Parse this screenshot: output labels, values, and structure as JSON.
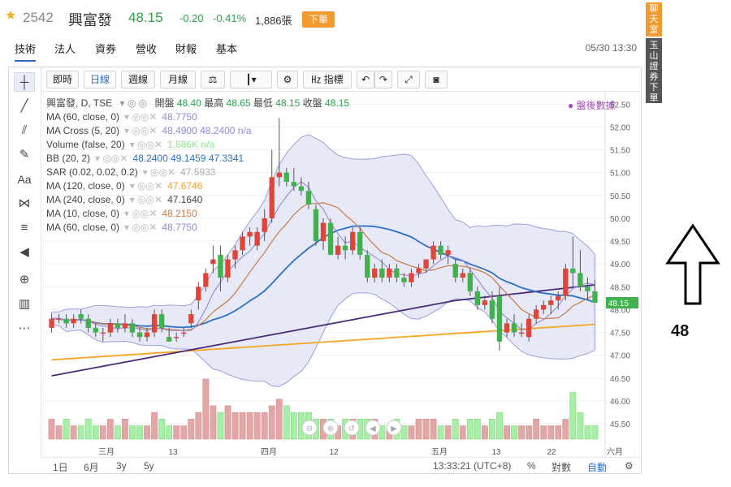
{
  "header": {
    "symbol": "2542",
    "name": "興富發",
    "price": "48.15",
    "change": "-0.20",
    "change_pct": "-0.41%",
    "volume": "1,886張",
    "order_label": "下單"
  },
  "nav": {
    "tabs": [
      "技術",
      "法人",
      "資券",
      "營收",
      "財報",
      "基本"
    ],
    "datetime": "05/30 13:30"
  },
  "side_tabs": {
    "chat": "聊天室",
    "broker": "玉山證券下單"
  },
  "toolbar": {
    "buttons": [
      "即時",
      "日線",
      "週線",
      "月線",
      "指標"
    ],
    "active": "日線"
  },
  "legend": {
    "title": "興富發, D, TSE",
    "open_label": "開盤",
    "open": "48.40",
    "high_label": "最高",
    "high": "48.65",
    "low_label": "最低",
    "low": "48.15",
    "close_label": "收盤",
    "close": "48.15",
    "after_hours": "盤後數據",
    "rows": [
      {
        "label": "MA (60, close, 0)",
        "values": "48.7750",
        "color": "#8b8bd6"
      },
      {
        "label": "MA Cross (5, 20)",
        "values": "48.4900  48.2400  n/a",
        "color": "#8b8bd6"
      },
      {
        "label": "Volume (false, 20)",
        "values": "1.886K  n/a",
        "color": "#8fe28f"
      },
      {
        "label": "BB (20, 2)",
        "values": "48.2400  49.1459  47.3341",
        "color": "#2c6fc7"
      },
      {
        "label": "SAR (0.02, 0.02, 0.2)",
        "values": "47.5933",
        "color": "#aaaaaa"
      },
      {
        "label": "MA (120, close, 0)",
        "values": "47.6746",
        "color": "#f0a030"
      },
      {
        "label": "MA (240, close, 0)",
        "values": "47.1640",
        "color": "#444444"
      },
      {
        "label": "MA (10, close, 0)",
        "values": "48.2150",
        "color": "#c87a44"
      },
      {
        "label": "MA (60, close, 0)",
        "values": "48.7750",
        "color": "#8b8bd6"
      }
    ]
  },
  "bottombar": {
    "ranges": [
      "1日",
      "6月",
      "3y",
      "5y"
    ],
    "time": "13:33:21 (UTC+8)",
    "pct": "%",
    "log": "對數",
    "auto": "自動"
  },
  "annotation": {
    "value": "48"
  },
  "chart_data": {
    "type": "candlestick",
    "y_ticks": [
      "52.50",
      "52.00",
      "51.50",
      "51.00",
      "50.50",
      "50.00",
      "49.50",
      "49.00",
      "48.50",
      "48.00",
      "47.50",
      "47.00",
      "46.50",
      "46.00",
      "45.50"
    ],
    "ylim": [
      45.2,
      52.7
    ],
    "x_ticks": [
      "三月",
      "13",
      "四月",
      "12",
      "五月",
      "13",
      "22",
      "六月"
    ],
    "last_price_label": "48.15",
    "candles": [
      [
        47.6,
        47.9,
        47.5,
        47.8
      ],
      [
        47.8,
        47.9,
        47.7,
        47.8
      ],
      [
        47.8,
        47.9,
        47.6,
        47.7
      ],
      [
        47.7,
        47.9,
        47.6,
        47.8
      ],
      [
        47.9,
        48.0,
        47.7,
        47.8
      ],
      [
        47.8,
        47.9,
        47.5,
        47.6
      ],
      [
        47.6,
        47.7,
        47.4,
        47.5
      ],
      [
        47.5,
        47.6,
        47.3,
        47.5
      ],
      [
        47.5,
        47.8,
        47.4,
        47.7
      ],
      [
        47.7,
        47.8,
        47.5,
        47.6
      ],
      [
        47.6,
        47.9,
        47.5,
        47.7
      ],
      [
        47.7,
        47.8,
        47.4,
        47.5
      ],
      [
        47.5,
        47.6,
        47.3,
        47.4
      ],
      [
        47.4,
        47.6,
        47.3,
        47.5
      ],
      [
        47.5,
        48.0,
        47.4,
        47.9
      ],
      [
        47.9,
        48.0,
        47.5,
        47.6
      ],
      [
        47.4,
        47.6,
        47.3,
        47.3
      ],
      [
        47.4,
        47.5,
        47.3,
        47.4
      ],
      [
        47.5,
        47.6,
        47.4,
        47.5
      ],
      [
        47.7,
        48.0,
        47.6,
        47.9
      ],
      [
        48.2,
        48.6,
        48.0,
        48.5
      ],
      [
        48.5,
        48.9,
        48.4,
        48.8
      ],
      [
        49.0,
        49.4,
        48.8,
        49.1
      ],
      [
        49.2,
        49.4,
        48.4,
        48.7
      ],
      [
        48.7,
        49.2,
        48.6,
        49.1
      ],
      [
        49.1,
        49.4,
        48.9,
        49.3
      ],
      [
        49.3,
        49.7,
        49.2,
        49.6
      ],
      [
        49.6,
        49.8,
        49.4,
        49.7
      ],
      [
        49.4,
        49.8,
        49.3,
        49.7
      ],
      [
        49.7,
        50.2,
        49.5,
        50.0
      ],
      [
        50.0,
        51.5,
        49.9,
        50.9
      ],
      [
        50.9,
        52.2,
        50.7,
        51.0
      ],
      [
        51.0,
        51.1,
        50.7,
        50.8
      ],
      [
        50.8,
        51.1,
        50.6,
        50.7
      ],
      [
        50.7,
        50.9,
        50.5,
        50.6
      ],
      [
        50.6,
        50.8,
        50.2,
        50.3
      ],
      [
        50.2,
        50.3,
        49.4,
        49.5
      ],
      [
        49.5,
        50.0,
        49.3,
        49.9
      ],
      [
        49.9,
        50.0,
        49.2,
        49.2
      ],
      [
        49.2,
        49.6,
        49.1,
        49.4
      ],
      [
        49.4,
        49.6,
        49.1,
        49.3
      ],
      [
        49.3,
        49.8,
        49.2,
        49.7
      ],
      [
        49.7,
        49.8,
        49.1,
        49.2
      ],
      [
        49.2,
        49.3,
        48.6,
        48.7
      ],
      [
        48.7,
        49.0,
        48.6,
        48.9
      ],
      [
        48.9,
        49.1,
        48.6,
        48.7
      ],
      [
        48.7,
        49.0,
        48.6,
        48.9
      ],
      [
        48.9,
        49.0,
        48.6,
        48.7
      ],
      [
        48.7,
        48.8,
        48.5,
        48.6
      ],
      [
        48.6,
        48.9,
        48.5,
        48.8
      ],
      [
        48.8,
        49.0,
        48.7,
        48.9
      ],
      [
        48.9,
        49.1,
        48.8,
        49.1
      ],
      [
        49.1,
        49.5,
        49.0,
        49.4
      ],
      [
        49.4,
        49.5,
        49.1,
        49.2
      ],
      [
        49.2,
        49.4,
        49.0,
        49.3
      ],
      [
        49.0,
        49.1,
        48.6,
        48.7
      ],
      [
        48.7,
        48.9,
        48.6,
        48.8
      ],
      [
        48.8,
        48.9,
        48.3,
        48.4
      ],
      [
        48.4,
        48.5,
        48.0,
        48.1
      ],
      [
        48.1,
        48.3,
        48.0,
        48.2
      ],
      [
        48.2,
        48.4,
        47.7,
        47.8
      ],
      [
        48.3,
        48.5,
        47.1,
        47.3
      ],
      [
        47.5,
        47.8,
        47.4,
        47.7
      ],
      [
        47.7,
        47.9,
        47.4,
        47.5
      ],
      [
        47.5,
        47.7,
        47.4,
        47.5
      ],
      [
        47.4,
        47.9,
        47.3,
        47.8
      ],
      [
        47.8,
        48.1,
        47.7,
        48.0
      ],
      [
        48.0,
        48.2,
        47.9,
        48.1
      ],
      [
        48.1,
        48.3,
        47.9,
        48.2
      ],
      [
        48.2,
        48.4,
        48.0,
        48.3
      ],
      [
        48.3,
        49.0,
        48.2,
        48.9
      ],
      [
        48.9,
        49.6,
        48.5,
        48.8
      ],
      [
        48.8,
        49.3,
        48.4,
        48.5
      ],
      [
        48.5,
        48.7,
        48.2,
        48.4
      ],
      [
        48.4,
        48.65,
        48.15,
        48.15
      ]
    ],
    "volume": [
      3,
      2,
      3,
      2,
      2,
      3,
      2,
      2,
      3,
      2,
      3,
      2,
      2,
      2,
      4,
      3,
      2,
      2,
      2,
      3,
      4,
      9,
      5,
      4,
      5,
      4,
      4,
      4,
      4,
      4,
      5,
      6,
      5,
      4,
      4,
      4,
      3,
      3,
      3,
      2,
      3,
      3,
      3,
      3,
      3,
      2,
      2,
      3,
      2,
      2,
      3,
      3,
      3,
      2,
      2,
      3,
      2,
      3,
      3,
      2,
      3,
      4,
      2,
      2,
      2,
      2,
      3,
      2,
      2,
      2,
      3,
      7,
      4,
      2,
      2
    ]
  }
}
